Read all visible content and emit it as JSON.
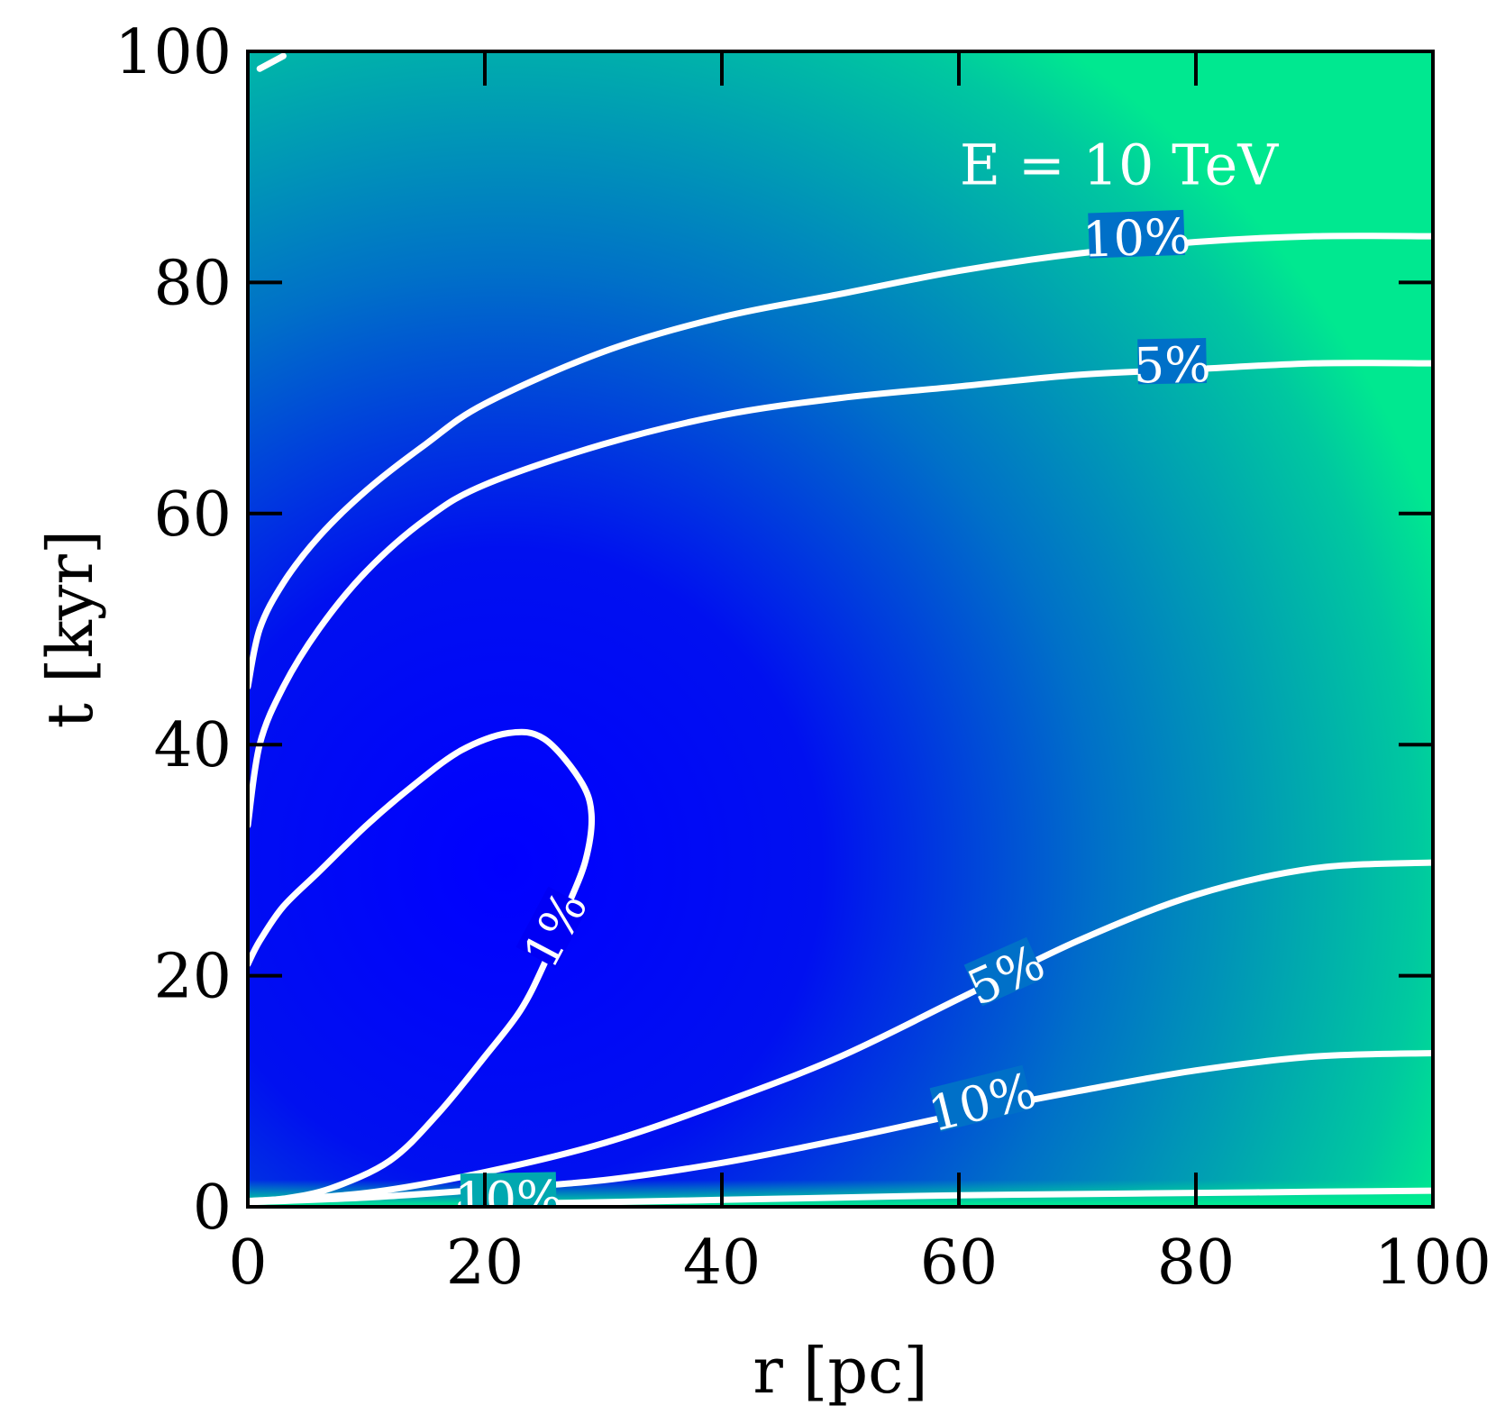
{
  "chart_data": {
    "type": "heatmap",
    "title": "",
    "xlabel": "r [pc]",
    "ylabel": "t [kyr]",
    "xlim": [
      0,
      100
    ],
    "ylim": [
      0,
      100
    ],
    "xticks": [
      "0",
      "20",
      "40",
      "60",
      "80",
      "100"
    ],
    "yticks": [
      "0",
      "20",
      "40",
      "60",
      "80",
      "100"
    ],
    "xtick_values": [
      0,
      20,
      40,
      60,
      80,
      100
    ],
    "ytick_values": [
      0,
      20,
      40,
      60,
      80,
      100
    ],
    "grid": false,
    "annotation": "E = 10 TeV",
    "colors": {
      "low": "#0000ff",
      "mid": "#0070c8",
      "high": "#00e890",
      "contour": "#ffffff"
    },
    "contours": [
      {
        "level": "1%",
        "label": "1%",
        "points": [
          [
            0,
            21
          ],
          [
            1,
            23
          ],
          [
            3,
            26
          ],
          [
            6,
            29
          ],
          [
            10,
            33
          ],
          [
            14,
            36.5
          ],
          [
            18,
            39.5
          ],
          [
            22,
            41
          ],
          [
            25,
            40.5
          ],
          [
            28,
            37
          ],
          [
            29,
            34
          ],
          [
            28.5,
            30
          ],
          [
            27,
            26
          ],
          [
            25,
            21
          ],
          [
            23,
            17
          ],
          [
            20,
            13
          ],
          [
            16,
            8
          ],
          [
            12,
            4
          ],
          [
            7,
            1.6
          ],
          [
            3,
            0.7
          ],
          [
            0,
            0.5
          ]
        ]
      },
      {
        "level": "5%",
        "label": "5%",
        "points": [
          [
            0,
            33
          ],
          [
            1,
            40
          ],
          [
            3,
            45
          ],
          [
            6,
            50
          ],
          [
            10,
            55
          ],
          [
            15,
            59.5
          ],
          [
            20,
            62.5
          ],
          [
            30,
            66
          ],
          [
            40,
            68.5
          ],
          [
            50,
            70
          ],
          [
            60,
            71
          ],
          [
            70,
            72
          ],
          [
            80,
            72.5
          ],
          [
            90,
            73
          ],
          [
            100,
            73
          ]
        ]
      },
      {
        "level": "10%",
        "label": "10%",
        "points": [
          [
            0,
            45
          ],
          [
            1,
            50
          ],
          [
            3,
            54
          ],
          [
            6,
            58
          ],
          [
            10,
            62
          ],
          [
            15,
            66
          ],
          [
            20,
            69.5
          ],
          [
            30,
            74
          ],
          [
            40,
            77
          ],
          [
            50,
            79
          ],
          [
            60,
            81
          ],
          [
            70,
            82.5
          ],
          [
            80,
            83.5
          ],
          [
            90,
            84
          ],
          [
            100,
            84
          ]
        ]
      },
      {
        "level": "5%",
        "label": "5%",
        "points": [
          [
            0,
            0.5
          ],
          [
            10,
            1.2
          ],
          [
            20,
            3
          ],
          [
            30,
            5.5
          ],
          [
            40,
            9
          ],
          [
            50,
            13
          ],
          [
            60,
            18
          ],
          [
            70,
            23
          ],
          [
            80,
            27
          ],
          [
            90,
            29.3
          ],
          [
            100,
            29.8
          ]
        ]
      },
      {
        "level": "10%",
        "label": "10%",
        "points": [
          [
            0,
            0.4
          ],
          [
            10,
            0.8
          ],
          [
            20,
            1.5
          ],
          [
            30,
            2.3
          ],
          [
            40,
            3.8
          ],
          [
            50,
            5.8
          ],
          [
            60,
            8
          ],
          [
            70,
            10
          ],
          [
            80,
            11.8
          ],
          [
            90,
            13
          ],
          [
            100,
            13.3
          ]
        ]
      },
      {
        "level": "10%",
        "label": "10%",
        "points": [
          [
            18,
            0.2
          ],
          [
            30,
            0.4
          ],
          [
            40,
            0.6
          ],
          [
            50,
            0.8
          ],
          [
            60,
            1
          ],
          [
            70,
            1.1
          ],
          [
            80,
            1.2
          ],
          [
            90,
            1.3
          ],
          [
            100,
            1.4
          ]
        ]
      }
    ]
  }
}
